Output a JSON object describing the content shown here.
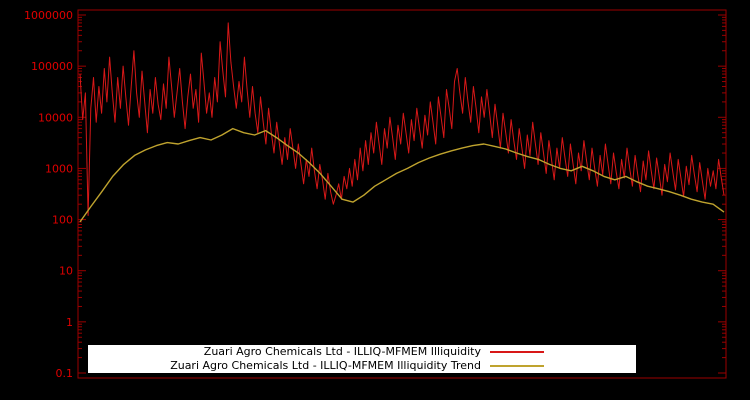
{
  "chart_data": {
    "type": "line",
    "title": "",
    "xlabel": "",
    "ylabel": "",
    "y_scale": "log",
    "ylim": [
      0.1,
      1000000
    ],
    "y_tick_labels": [
      "1000000",
      "100000",
      "10000",
      "1000",
      "100",
      "10",
      "1",
      "0.1"
    ],
    "y_tick_values": [
      1000000,
      100000,
      10000,
      1000,
      100,
      10,
      1,
      0.1
    ],
    "grid": false,
    "legend_position": "bottom-center",
    "background_color": "#000000",
    "frame_color": "#9b0000",
    "tick_label_color": "#e00000",
    "series": [
      {
        "name": "Zuari Agro Chemicals Ltd - ILLIQ-MFMEM Illiquidity",
        "color": "#d81818",
        "width": 1,
        "values": [
          70000,
          9000,
          30000,
          120,
          15000,
          60000,
          8000,
          40000,
          12000,
          90000,
          20000,
          150000,
          30000,
          8000,
          60000,
          15000,
          100000,
          25000,
          7000,
          40000,
          200000,
          30000,
          10000,
          80000,
          20000,
          5000,
          35000,
          12000,
          60000,
          18000,
          9000,
          45000,
          15000,
          150000,
          40000,
          10000,
          30000,
          90000,
          20000,
          6000,
          25000,
          70000,
          15000,
          35000,
          8000,
          180000,
          50000,
          12000,
          30000,
          10000,
          60000,
          20000,
          300000,
          80000,
          25000,
          700000,
          120000,
          40000,
          15000,
          50000,
          20000,
          150000,
          35000,
          10000,
          40000,
          12000,
          5000,
          25000,
          8000,
          3000,
          15000,
          5000,
          2000,
          8000,
          3000,
          1200,
          4000,
          1500,
          6000,
          2500,
          1000,
          3000,
          1200,
          500,
          1500,
          700,
          2500,
          900,
          400,
          1200,
          600,
          250,
          800,
          350,
          200,
          300,
          500,
          250,
          700,
          400,
          1000,
          450,
          1500,
          600,
          2500,
          900,
          3500,
          1200,
          5000,
          2000,
          8000,
          3000,
          1200,
          6000,
          2500,
          10000,
          4000,
          1500,
          7000,
          3000,
          12000,
          5000,
          2000,
          9000,
          3500,
          15000,
          6000,
          2500,
          11000,
          4500,
          20000,
          8000,
          3000,
          25000,
          10000,
          4000,
          35000,
          15000,
          6000,
          50000,
          90000,
          30000,
          12000,
          60000,
          20000,
          8000,
          40000,
          15000,
          5000,
          25000,
          10000,
          35000,
          12000,
          4000,
          18000,
          7000,
          2500,
          12000,
          5000,
          2000,
          9000,
          3500,
          1500,
          6000,
          2500,
          1000,
          4500,
          1800,
          8000,
          3000,
          1200,
          5000,
          2000,
          800,
          3500,
          1500,
          600,
          2500,
          1000,
          4000,
          1600,
          700,
          3000,
          1200,
          500,
          2000,
          900,
          3500,
          1400,
          600,
          2500,
          1000,
          450,
          1800,
          750,
          3000,
          1200,
          500,
          2000,
          850,
          400,
          1500,
          650,
          2500,
          1000,
          450,
          1800,
          750,
          350,
          1400,
          600,
          2200,
          900,
          400,
          1600,
          700,
          300,
          1200,
          550,
          2000,
          850,
          380,
          1500,
          650,
          280,
          1100,
          480,
          1800,
          750,
          350,
          1300,
          560,
          250,
          1000,
          450,
          900,
          400,
          1500,
          650,
          300
        ]
      },
      {
        "name": "Zuari Agro Chemicals Ltd - ILLIQ-MFMEM Illiquidity Trend",
        "color": "#bfa32e",
        "width": 1.4,
        "values": [
          90,
          180,
          350,
          700,
          1200,
          1800,
          2300,
          2800,
          3200,
          3000,
          3500,
          4000,
          3600,
          4500,
          6000,
          5000,
          4500,
          5500,
          4000,
          2800,
          2000,
          1300,
          800,
          450,
          250,
          220,
          300,
          450,
          600,
          800,
          1000,
          1300,
          1600,
          1900,
          2200,
          2500,
          2800,
          3000,
          2700,
          2400,
          2000,
          1700,
          1500,
          1200,
          1000,
          900,
          1100,
          900,
          700,
          600,
          700,
          550,
          450,
          400,
          350,
          300,
          250,
          220,
          200,
          140
        ]
      }
    ]
  },
  "legend": {
    "entries": [
      "Zuari Agro Chemicals Ltd - ILLIQ-MFMEM Illiquidity",
      "Zuari Agro Chemicals Ltd - ILLIQ-MFMEM Illiquidity Trend"
    ]
  }
}
